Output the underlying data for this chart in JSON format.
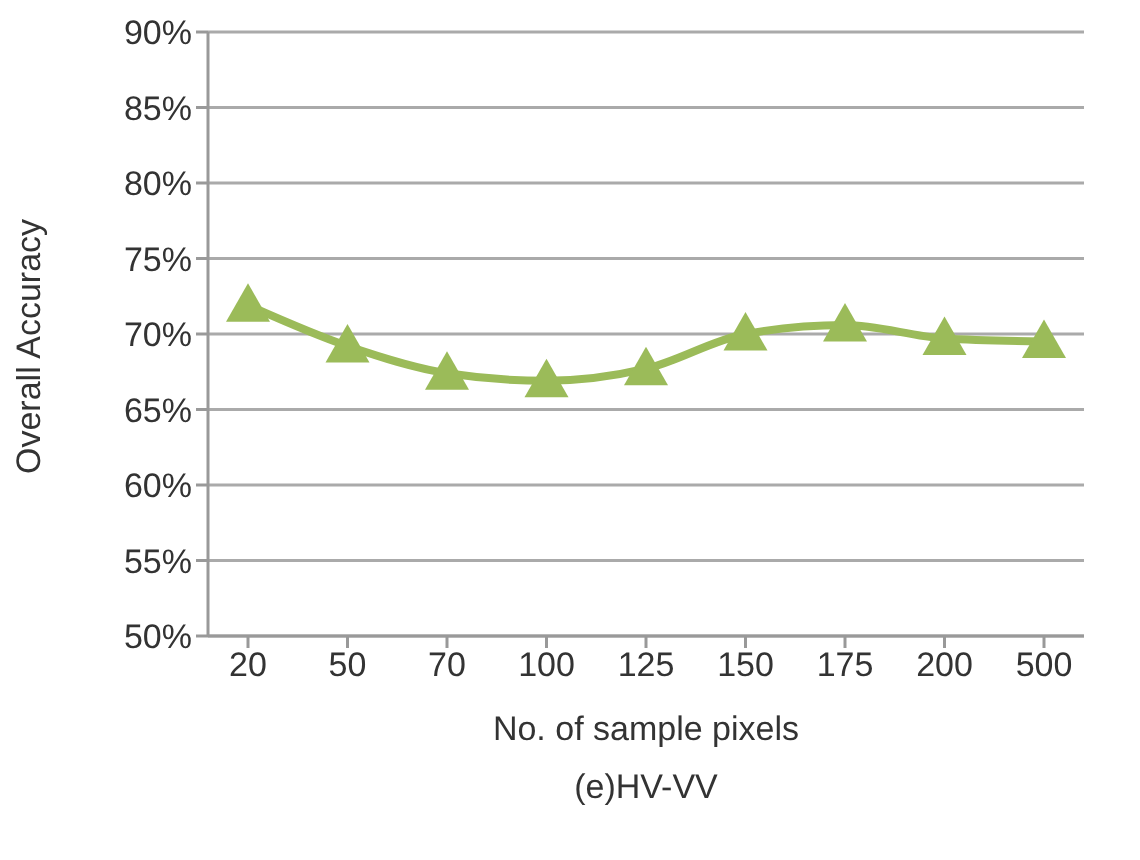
{
  "chart_data": {
    "type": "line",
    "xlabel": "No. of sample pixels",
    "ylabel": "Overall Accuracy",
    "annotations": [
      "(e)HV-VV"
    ],
    "categories": [
      "20",
      "50",
      "70",
      "100",
      "125",
      "150",
      "175",
      "200",
      "500"
    ],
    "series": [
      {
        "color": "#9bbb59",
        "values": [
          71.9,
          69.2,
          67.4,
          66.9,
          67.7,
          70.0,
          70.6,
          69.7,
          69.5
        ]
      }
    ],
    "ylim": [
      50,
      90
    ],
    "yticks": [
      {
        "value": 50,
        "label": "50%"
      },
      {
        "value": 55,
        "label": "55%"
      },
      {
        "value": 60,
        "label": "60%"
      },
      {
        "value": 65,
        "label": "65%"
      },
      {
        "value": 70,
        "label": "70%"
      },
      {
        "value": 75,
        "label": "75%"
      },
      {
        "value": 80,
        "label": "80%"
      },
      {
        "value": 85,
        "label": "85%"
      },
      {
        "value": 90,
        "label": "90%"
      }
    ],
    "grid": "y",
    "marker": "triangle",
    "line_style": "solid"
  }
}
